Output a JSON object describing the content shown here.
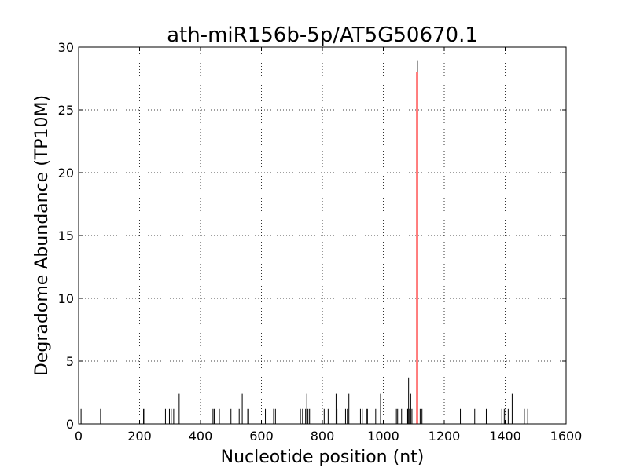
{
  "chart_data": {
    "type": "bar",
    "title": "ath-miR156b-5p/AT5G50670.1",
    "xlabel": "Nucleotide position (nt)",
    "ylabel": "Degradome Abundance (TP10M)",
    "xlim": [
      0,
      1600
    ],
    "ylim": [
      0,
      30
    ],
    "xticks": [
      "0",
      "200",
      "400",
      "600",
      "800",
      "1000",
      "1200",
      "1400",
      "1600"
    ],
    "yticks": [
      "0",
      "5",
      "10",
      "15",
      "20",
      "25",
      "30"
    ],
    "grid": true,
    "series": [
      {
        "color": "#000000",
        "points": [
          [
            8,
            1.2
          ],
          [
            72,
            1.2
          ],
          [
            213,
            1.2
          ],
          [
            217,
            1.2
          ],
          [
            285,
            1.2
          ],
          [
            298,
            1.2
          ],
          [
            304,
            1.2
          ],
          [
            312,
            1.2
          ],
          [
            330,
            2.4
          ],
          [
            441,
            1.2
          ],
          [
            445,
            1.2
          ],
          [
            462,
            1.2
          ],
          [
            500,
            1.2
          ],
          [
            527,
            1.2
          ],
          [
            537,
            2.4
          ],
          [
            555,
            1.2
          ],
          [
            558,
            1.2
          ],
          [
            613,
            1.2
          ],
          [
            640,
            1.2
          ],
          [
            646,
            1.2
          ],
          [
            728,
            1.2
          ],
          [
            735,
            1.2
          ],
          [
            745,
            1.2
          ],
          [
            749,
            2.4
          ],
          [
            752,
            1.2
          ],
          [
            757,
            1.2
          ],
          [
            762,
            1.2
          ],
          [
            806,
            1.2
          ],
          [
            819,
            1.2
          ],
          [
            845,
            2.4
          ],
          [
            848,
            1.2
          ],
          [
            871,
            1.2
          ],
          [
            876,
            1.2
          ],
          [
            882,
            1.2
          ],
          [
            887,
            2.4
          ],
          [
            925,
            1.2
          ],
          [
            931,
            1.2
          ],
          [
            945,
            1.2
          ],
          [
            948,
            1.2
          ],
          [
            975,
            1.2
          ],
          [
            991,
            2.4
          ],
          [
            1043,
            1.2
          ],
          [
            1047,
            1.2
          ],
          [
            1060,
            1.2
          ],
          [
            1075,
            1.2
          ],
          [
            1080,
            1.2
          ],
          [
            1083,
            3.7
          ],
          [
            1086,
            1.2
          ],
          [
            1090,
            2.4
          ],
          [
            1094,
            1.2
          ],
          [
            1112,
            28.9
          ],
          [
            1121,
            1.2
          ],
          [
            1127,
            1.2
          ],
          [
            1253,
            1.2
          ],
          [
            1300,
            1.2
          ],
          [
            1338,
            1.2
          ],
          [
            1389,
            1.2
          ],
          [
            1397,
            1.2
          ],
          [
            1402,
            1.2
          ],
          [
            1410,
            1.2
          ],
          [
            1423,
            2.4
          ],
          [
            1463,
            1.2
          ],
          [
            1474,
            1.2
          ]
        ]
      },
      {
        "color": "#ff0000",
        "points": [
          [
            1111,
            28.0
          ]
        ]
      }
    ]
  }
}
